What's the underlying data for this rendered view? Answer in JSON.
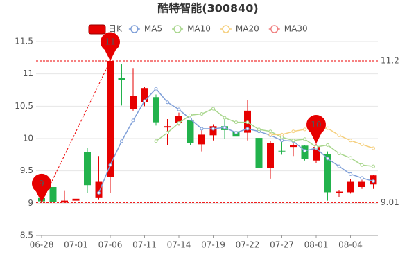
{
  "chart_data": {
    "type": "candlestick",
    "title": "酷特智能(300840)",
    "categories": [
      "06-28",
      null,
      null,
      "07-01",
      null,
      null,
      "07-06",
      null,
      null,
      "07-11",
      null,
      null,
      "07-14",
      null,
      null,
      "07-19",
      null,
      null,
      "07-22",
      null,
      null,
      "07-27",
      null,
      null,
      "08-01",
      null,
      null,
      "08-04",
      null,
      null
    ],
    "candles": {
      "name": "日K",
      "up_color": "#e60000",
      "down_color": "#22b24c",
      "open": [
        9.08,
        9.25,
        9.01,
        9.04,
        9.79,
        9.08,
        9.41,
        10.94,
        10.46,
        10.56,
        10.64,
        10.17,
        10.24,
        10.29,
        9.91,
        10.05,
        10.19,
        10.11,
        10.09,
        10.01,
        9.54,
        9.81,
        9.87,
        9.89,
        9.66,
        9.76,
        9.16,
        9.17,
        9.25,
        9.29
      ],
      "close": [
        9.03,
        9.02,
        9.04,
        9.07,
        9.28,
        9.33,
        11.2,
        10.9,
        10.66,
        10.78,
        10.25,
        10.19,
        10.35,
        9.93,
        10.06,
        10.19,
        10.13,
        10.03,
        10.43,
        9.54,
        9.93,
        9.8,
        9.9,
        9.68,
        9.87,
        9.17,
        9.18,
        9.33,
        9.33,
        9.43
      ],
      "low": [
        9.01,
        9.01,
        9.01,
        8.95,
        9.16,
        9.05,
        9.16,
        10.51,
        10.43,
        10.5,
        10.2,
        9.9,
        10.2,
        9.9,
        9.8,
        9.97,
        10.0,
        10.02,
        9.97,
        9.47,
        9.38,
        9.75,
        9.73,
        9.66,
        9.62,
        9.04,
        9.1,
        9.15,
        9.22,
        9.22
      ],
      "high": [
        9.1,
        9.33,
        9.19,
        9.1,
        9.85,
        9.73,
        11.2,
        11.15,
        11.09,
        10.8,
        10.68,
        10.3,
        10.4,
        10.32,
        10.15,
        10.22,
        10.3,
        10.14,
        10.6,
        10.06,
        9.96,
        9.95,
        9.95,
        9.9,
        9.92,
        9.8,
        9.2,
        9.37,
        9.36,
        9.44
      ]
    },
    "series": [
      {
        "name": "MA5",
        "color": "#7f9fd8",
        "values": [
          null,
          null,
          null,
          null,
          null,
          9.16,
          9.59,
          9.96,
          10.28,
          10.58,
          10.77,
          10.56,
          10.45,
          10.3,
          10.15,
          10.15,
          10.17,
          10.09,
          10.15,
          10.11,
          10.05,
          9.97,
          9.96,
          9.81,
          9.85,
          9.69,
          9.57,
          9.45,
          9.39,
          9.34
        ]
      },
      {
        "name": "MA10",
        "color": "#a8d68c",
        "values": [
          null,
          null,
          null,
          null,
          null,
          null,
          null,
          null,
          null,
          null,
          9.96,
          10.09,
          10.24,
          10.36,
          10.38,
          10.46,
          10.32,
          10.25,
          10.25,
          10.14,
          10.11,
          10.02,
          9.97,
          9.99,
          9.87,
          9.9,
          9.77,
          9.7,
          9.59,
          9.57
        ]
      },
      {
        "name": "MA20",
        "color": "#f5cf7d",
        "values": [
          null,
          null,
          null,
          null,
          null,
          null,
          null,
          null,
          null,
          null,
          null,
          null,
          null,
          null,
          null,
          null,
          null,
          null,
          null,
          null,
          10.06,
          10.06,
          10.11,
          10.14,
          10.16,
          10.16,
          10.05,
          9.97,
          9.91,
          9.85
        ]
      },
      {
        "name": "MA30",
        "color": "#f08080",
        "values": [
          null,
          null,
          null,
          null,
          null,
          null,
          null,
          null,
          null,
          null,
          null,
          null,
          null,
          null,
          null,
          null,
          null,
          null,
          null,
          null,
          null,
          null,
          null,
          null,
          null,
          null,
          null,
          null,
          null,
          null
        ]
      }
    ],
    "ylim": [
      8.5,
      11.5
    ],
    "yticks": [
      8.5,
      9,
      9.5,
      10,
      10.5,
      11,
      11.5
    ],
    "grid": true,
    "hlines": [
      11.2,
      9.01
    ],
    "markers": [
      {
        "text": "11",
        "at": 6,
        "kind": "high"
      },
      {
        "text": "10",
        "at": 24,
        "kind": "high"
      },
      {
        "text": "9",
        "at": 0,
        "kind": "low"
      }
    ]
  }
}
